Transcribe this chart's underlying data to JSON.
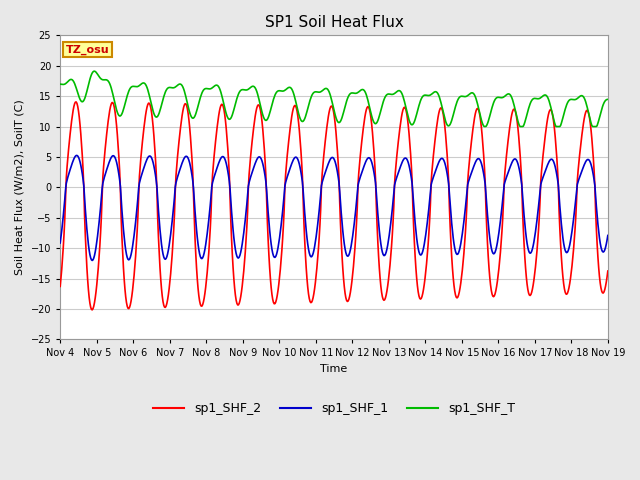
{
  "title": "SP1 Soil Heat Flux",
  "xlabel": "Time",
  "ylabel": "Soil Heat Flux (W/m2), SoilT (C)",
  "ylim": [
    -25,
    25
  ],
  "xlim": [
    0,
    15
  ],
  "fig_bg": "#e8e8e8",
  "plot_bg": "#ffffff",
  "grid_color": "#cccccc",
  "tick_labels": [
    "Nov 4",
    "Nov 5",
    "Nov 6",
    "Nov 7",
    "Nov 8",
    "Nov 9",
    "Nov 10",
    "Nov 11",
    "Nov 12",
    "Nov 13",
    "Nov 14",
    "Nov 15",
    "Nov 16",
    "Nov 17",
    "Nov 18",
    "Nov 19"
  ],
  "color_shf2": "#ff0000",
  "color_shf1": "#0000cc",
  "color_shfT": "#00bb00",
  "legend_label_2": "sp1_SHF_2",
  "legend_label_1": "sp1_SHF_1",
  "legend_label_T": "sp1_SHF_T",
  "tz_label": "TZ_osu",
  "tz_bg": "#ffff99",
  "tz_border": "#cc8800",
  "linewidth": 1.2,
  "title_fontsize": 11,
  "label_fontsize": 8,
  "tick_fontsize": 7,
  "legend_fontsize": 9
}
